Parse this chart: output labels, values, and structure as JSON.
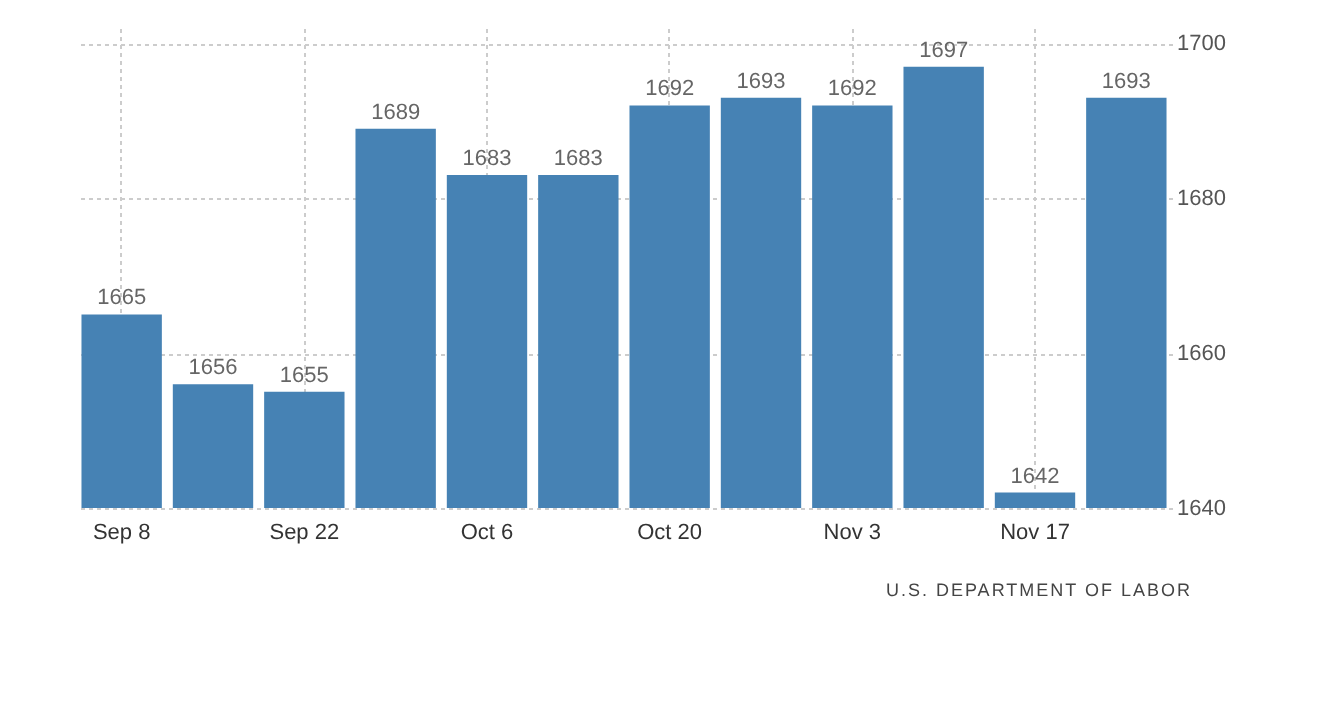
{
  "chart_data": {
    "type": "bar",
    "categories": [
      "Sep 8",
      null,
      "Sep 22",
      null,
      "Oct 6",
      null,
      "Oct 20",
      null,
      "Nov 3",
      null,
      "Nov 17",
      null
    ],
    "values": [
      1665,
      1656,
      1655,
      1689,
      1683,
      1683,
      1692,
      1693,
      1692,
      1697,
      1642,
      1693
    ],
    "color": "#4682b4",
    "ylim": [
      1640,
      1702
    ],
    "yticks": [
      1640,
      1660,
      1680,
      1700
    ],
    "grid": true,
    "data_labels": true,
    "annotations": [
      "U.S. DEPARTMENT OF LABOR"
    ]
  }
}
